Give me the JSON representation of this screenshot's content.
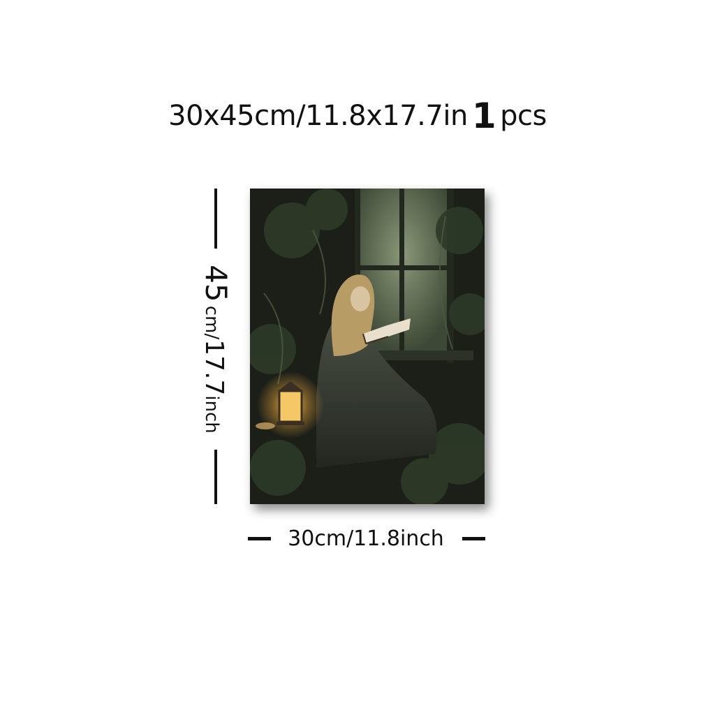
{
  "headline": {
    "size_text": "30x45cm/11.8x17.7in",
    "quantity": "1",
    "unit": "pcs"
  },
  "height_dimension": {
    "value": "45",
    "unit_cm": "cm/",
    "value_in": "17.7",
    "unit_in": "inch"
  },
  "width_dimension": {
    "label": "30cm/11.8inch"
  },
  "artwork": {
    "subject": "woman-reading-book-by-window",
    "colors": {
      "background": "#1a1d16",
      "window_light": "#6b7a5e",
      "lantern_glow": "#f0c060",
      "hair": "#c9b07a",
      "dress": "#3a3f38"
    }
  }
}
